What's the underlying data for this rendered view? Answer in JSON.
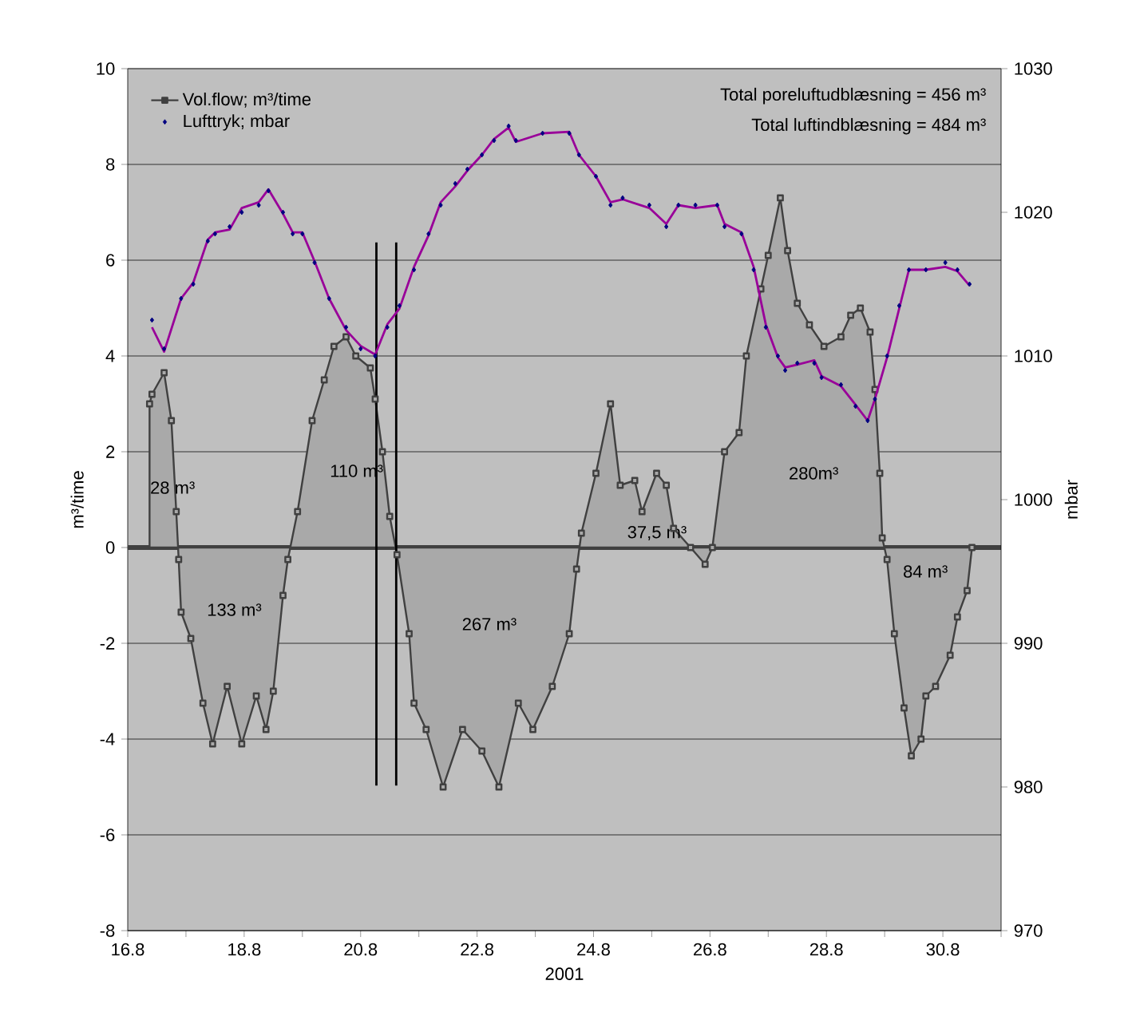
{
  "chart_data": {
    "type": "area",
    "xlabel": "2001",
    "ylabel": "m³/time",
    "y2label": "mbar",
    "xlim": [
      "2001-08-16",
      "2001-08-31"
    ],
    "xticks": [
      {
        "value": "2001-08-16",
        "label": "16.8"
      },
      {
        "value": "2001-08-17",
        "label": null
      },
      {
        "value": "2001-08-18",
        "label": "18.8"
      },
      {
        "value": "2001-08-19",
        "label": null
      },
      {
        "value": "2001-08-20",
        "label": "20.8"
      },
      {
        "value": "2001-08-21",
        "label": null
      },
      {
        "value": "2001-08-22",
        "label": "22.8"
      },
      {
        "value": "2001-08-23",
        "label": null
      },
      {
        "value": "2001-08-24",
        "label": "24.8"
      },
      {
        "value": "2001-08-25",
        "label": null
      },
      {
        "value": "2001-08-26",
        "label": "26.8"
      },
      {
        "value": "2001-08-27",
        "label": null
      },
      {
        "value": "2001-08-28",
        "label": "28.8"
      },
      {
        "value": "2001-08-29",
        "label": null
      },
      {
        "value": "2001-08-30",
        "label": "30.8"
      },
      {
        "value": "2001-08-31",
        "label": null
      }
    ],
    "ylim": [
      -8,
      10
    ],
    "yticks": [
      -8,
      -6,
      -4,
      -2,
      0,
      2,
      4,
      6,
      8,
      10
    ],
    "y2lim": [
      970,
      1030
    ],
    "y2ticks": [
      970,
      980,
      990,
      1000,
      1010,
      1020,
      1030
    ],
    "grid": "y",
    "legend": "top left",
    "ref_lines": [
      {
        "axis": "y",
        "value": 0,
        "color": "#404040"
      }
    ],
    "annotations": [
      "Total poreluftudblæsning = 456 m³",
      "Total luftindblæsning = 484 m³",
      "28 m³",
      "110 m³",
      "133 m³",
      "267 m³",
      "37,5 m³",
      "280m³",
      "84 m³"
    ],
    "series": [
      {
        "name": "Vol.flow; m³/time",
        "marker": "square",
        "color": "#404040",
        "x": [
          "2001-08-16T09:00",
          "2001-08-16T10:00",
          "2001-08-16T15:00",
          "2001-08-16T18:00",
          "2001-08-16T20:00",
          "2001-08-16T21:00",
          "2001-08-16T22:00",
          "2001-08-17T02:00",
          "2001-08-17T07:00",
          "2001-08-17T11:00",
          "2001-08-17T17:00",
          "2001-08-17T23:00",
          "2001-08-18T05:00",
          "2001-08-18T09:00",
          "2001-08-18T12:00",
          "2001-08-18T16:00",
          "2001-08-18T18:00",
          "2001-08-18T22:00",
          "2001-08-19T04:00",
          "2001-08-19T09:00",
          "2001-08-19T13:00",
          "2001-08-19T18:00",
          "2001-08-19T22:00",
          "2001-08-20T04:00",
          "2001-08-20T06:00",
          "2001-08-20T09:00",
          "2001-08-20T12:00",
          "2001-08-20T15:00",
          "2001-08-20T20:00",
          "2001-08-20T22:00",
          "2001-08-21T03:00",
          "2001-08-21T10:00",
          "2001-08-21T18:00",
          "2001-08-22T02:00",
          "2001-08-22T09:00",
          "2001-08-22T17:00",
          "2001-08-22T23:00",
          "2001-08-23T07:00",
          "2001-08-23T14:00",
          "2001-08-23T17:00",
          "2001-08-23T19:00",
          "2001-08-24T01:00",
          "2001-08-24T07:00",
          "2001-08-24T11:00",
          "2001-08-24T17:00",
          "2001-08-24T20:00",
          "2001-08-25T02:00",
          "2001-08-25T06:00",
          "2001-08-25T09:00",
          "2001-08-25T16:00",
          "2001-08-25T22:00",
          "2001-08-26T01:00",
          "2001-08-26T06:00",
          "2001-08-26T12:00",
          "2001-08-26T15:00",
          "2001-08-26T21:00",
          "2001-08-27T00:00",
          "2001-08-27T05:00",
          "2001-08-27T08:00",
          "2001-08-27T12:00",
          "2001-08-27T17:00",
          "2001-08-27T23:00",
          "2001-08-28T06:00",
          "2001-08-28T10:00",
          "2001-08-28T14:00",
          "2001-08-28T18:00",
          "2001-08-28T20:00",
          "2001-08-28T22:00",
          "2001-08-28T23:00",
          "2001-08-29T01:00",
          "2001-08-29T04:00",
          "2001-08-29T08:00",
          "2001-08-29T11:00",
          "2001-08-29T15:00",
          "2001-08-29T17:00",
          "2001-08-29T21:00",
          "2001-08-30T03:00",
          "2001-08-30T06:00",
          "2001-08-30T10:00",
          "2001-08-30T12:00"
        ],
        "values": [
          3.0,
          3.2,
          3.65,
          2.65,
          0.75,
          -0.25,
          -1.35,
          -1.9,
          -3.25,
          -4.1,
          -2.9,
          -4.1,
          -3.1,
          -3.8,
          -3.0,
          -1.0,
          -0.25,
          0.75,
          2.65,
          3.5,
          4.2,
          4.4,
          4.0,
          3.75,
          3.1,
          2.0,
          0.65,
          -0.15,
          -1.8,
          -3.25,
          -3.8,
          -5.0,
          -3.8,
          -4.25,
          -5.0,
          -3.25,
          -3.8,
          -2.9,
          -1.8,
          -0.45,
          0.3,
          1.55,
          3.0,
          1.3,
          1.4,
          0.75,
          1.55,
          1.3,
          0.4,
          0,
          -0.35,
          0,
          2.0,
          2.4,
          4.0,
          5.4,
          6.1,
          7.3,
          6.2,
          5.1,
          4.65,
          4.2,
          4.4,
          4.85,
          5.0,
          4.5,
          3.3,
          1.55,
          0.2,
          -0.25,
          -1.8,
          -3.35,
          -4.35,
          -4.0,
          -3.1,
          -2.9,
          -2.25,
          -1.45,
          -0.9,
          0
        ]
      },
      {
        "name": "Lufttryk; mbar",
        "type": "scatter",
        "marker": "diamond",
        "axis": "y2",
        "color": "#000080",
        "x": [
          "2001-08-16T10:00",
          "2001-08-16T15:00",
          "2001-08-16T22:00",
          "2001-08-17T03:00",
          "2001-08-17T09:00",
          "2001-08-17T12:00",
          "2001-08-17T18:00",
          "2001-08-17T23:00",
          "2001-08-18T06:00",
          "2001-08-18T10:00",
          "2001-08-18T16:00",
          "2001-08-18T20:00",
          "2001-08-19T00:00",
          "2001-08-19T05:00",
          "2001-08-19T11:00",
          "2001-08-19T18:00",
          "2001-08-20T00:00",
          "2001-08-20T06:00",
          "2001-08-20T11:00",
          "2001-08-20T16:00",
          "2001-08-20T22:00",
          "2001-08-21T04:00",
          "2001-08-21T09:00",
          "2001-08-21T15:00",
          "2001-08-21T20:00",
          "2001-08-22T02:00",
          "2001-08-22T07:00",
          "2001-08-22T13:00",
          "2001-08-22T16:00",
          "2001-08-23T03:00",
          "2001-08-23T14:00",
          "2001-08-23T18:00",
          "2001-08-24T01:00",
          "2001-08-24T07:00",
          "2001-08-24T12:00",
          "2001-08-24T23:00",
          "2001-08-25T06:00",
          "2001-08-25T11:00",
          "2001-08-25T18:00",
          "2001-08-26T03:00",
          "2001-08-26T06:00",
          "2001-08-26T13:00",
          "2001-08-26T18:00",
          "2001-08-26T23:00",
          "2001-08-27T04:00",
          "2001-08-27T07:00",
          "2001-08-27T12:00",
          "2001-08-27T19:00",
          "2001-08-27T22:00",
          "2001-08-28T06:00",
          "2001-08-28T12:00",
          "2001-08-28T17:00",
          "2001-08-28T20:00",
          "2001-08-29T01:00",
          "2001-08-29T06:00",
          "2001-08-29T10:00",
          "2001-08-29T17:00",
          "2001-08-30T01:00",
          "2001-08-30T06:00",
          "2001-08-30T11:00"
        ],
        "values": [
          1012.5,
          1010.5,
          1014,
          1015,
          1018,
          1018.5,
          1019,
          1020,
          1020.5,
          1021.5,
          1020,
          1018.5,
          1018.5,
          1016.5,
          1014,
          1012,
          1010.5,
          1010,
          1012,
          1013.5,
          1016,
          1018.5,
          1020.5,
          1022,
          1023,
          1024,
          1025,
          1026,
          1025,
          1025.5,
          1025.5,
          1024,
          1022.5,
          1020.5,
          1021,
          1020.5,
          1019,
          1020.5,
          1020.5,
          1020.5,
          1019,
          1018.5,
          1016,
          1012,
          1010,
          1009,
          1009.5,
          1009.5,
          1008.5,
          1008,
          1006.5,
          1005.5,
          1007,
          1010,
          1013.5,
          1016,
          1016,
          1016.5,
          1016,
          1015
        ]
      },
      {
        "type": "line",
        "marker": "none",
        "axis": "y2",
        "color": "#990099",
        "x": [
          "2001-08-16T10:00",
          "2001-08-16T15:00",
          "2001-08-16T22:00",
          "2001-08-17T03:00",
          "2001-08-17T09:00",
          "2001-08-17T12:00",
          "2001-08-17T18:00",
          "2001-08-17T23:00",
          "2001-08-18T06:00",
          "2001-08-18T10:00",
          "2001-08-18T16:00",
          "2001-08-18T20:00",
          "2001-08-19T00:00",
          "2001-08-19T05:00",
          "2001-08-19T11:00",
          "2001-08-19T18:00",
          "2001-08-20T00:00",
          "2001-08-20T06:00",
          "2001-08-20T11:00",
          "2001-08-20T16:00",
          "2001-08-20T22:00",
          "2001-08-21T04:00",
          "2001-08-21T09:00",
          "2001-08-21T15:00",
          "2001-08-21T20:00",
          "2001-08-22T02:00",
          "2001-08-22T07:00",
          "2001-08-22T13:00",
          "2001-08-22T16:00",
          "2001-08-23T03:00",
          "2001-08-23T14:00",
          "2001-08-23T18:00",
          "2001-08-24T01:00",
          "2001-08-24T07:00",
          "2001-08-24T12:00",
          "2001-08-24T23:00",
          "2001-08-25T06:00",
          "2001-08-25T11:00",
          "2001-08-25T18:00",
          "2001-08-26T03:00",
          "2001-08-26T06:00",
          "2001-08-26T13:00",
          "2001-08-26T18:00",
          "2001-08-26T23:00",
          "2001-08-27T04:00",
          "2001-08-27T07:00",
          "2001-08-27T12:00",
          "2001-08-27T19:00",
          "2001-08-27T22:00",
          "2001-08-28T06:00",
          "2001-08-28T12:00",
          "2001-08-28T17:00",
          "2001-08-28T20:00",
          "2001-08-29T01:00",
          "2001-08-29T06:00",
          "2001-08-29T10:00",
          "2001-08-29T17:00",
          "2001-08-30T01:00",
          "2001-08-30T06:00",
          "2001-08-30T11:00"
        ],
        "values": [
          1012,
          1010.3,
          1014,
          1015.1,
          1018.1,
          1018.6,
          1018.8,
          1020.3,
          1020.7,
          1021.6,
          1019.9,
          1018.6,
          1018.6,
          1016.6,
          1014,
          1011.8,
          1010.7,
          1010.1,
          1012.2,
          1013.3,
          1016.2,
          1018.4,
          1020.7,
          1021.8,
          1022.9,
          1024,
          1025.1,
          1025.9,
          1024.9,
          1025.5,
          1025.6,
          1024,
          1022.5,
          1020.7,
          1020.9,
          1020.3,
          1019.2,
          1020.5,
          1020.3,
          1020.5,
          1019.2,
          1018.6,
          1016.2,
          1012.2,
          1009.9,
          1009.2,
          1009.4,
          1009.7,
          1008.6,
          1007.9,
          1006.6,
          1005.5,
          1007,
          1009.9,
          1013.3,
          1016,
          1016,
          1016.2,
          1015.9,
          1014.9
        ]
      },
      {
        "type": "line",
        "marker": "none",
        "color": "#000000",
        "x": [
          "2001-08-20T06:30",
          "2001-08-20T06:30"
        ],
        "values": [
          6.37,
          -4.97
        ]
      },
      {
        "type": "line",
        "marker": "none",
        "color": "#000000",
        "x": [
          "2001-08-20T14:40",
          "2001-08-20T14:40"
        ],
        "values": [
          6.37,
          -4.97
        ]
      }
    ]
  }
}
